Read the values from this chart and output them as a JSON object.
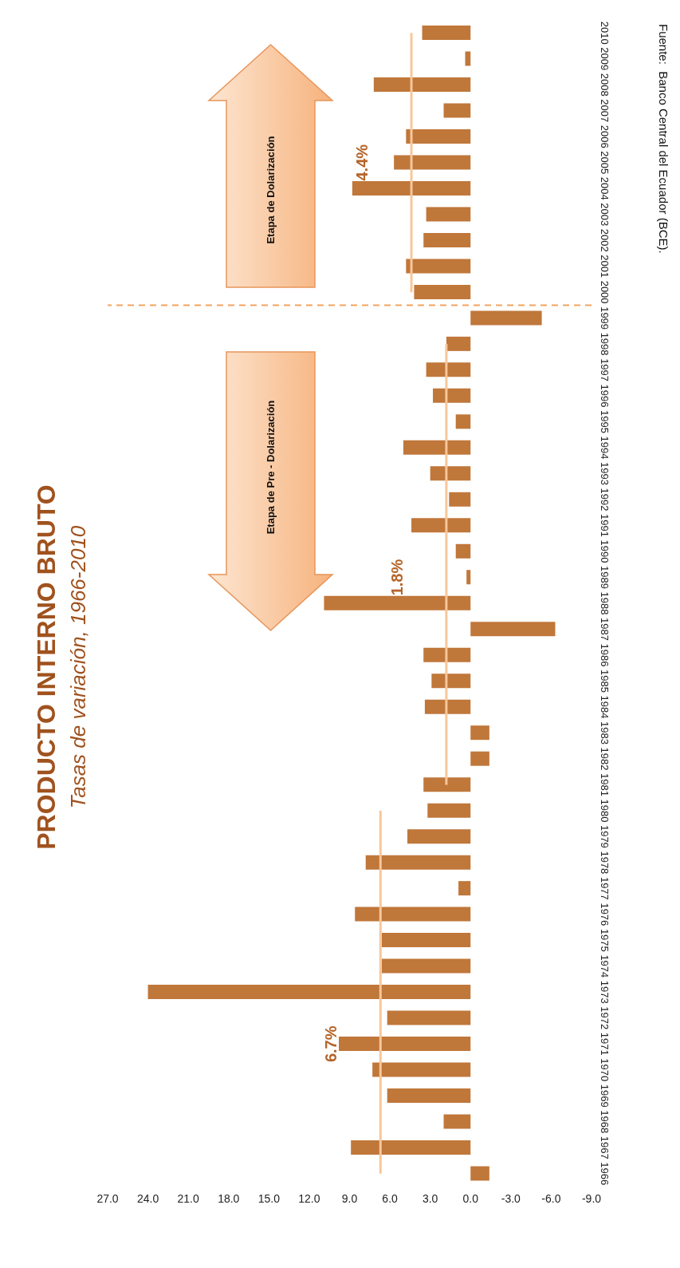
{
  "chart_data": {
    "type": "bar",
    "orientation": "horizontal",
    "title": "PRODUCTO INTERNO BRUTO",
    "subtitle": "Tasas de variación, 1966-2010",
    "categories": [
      "2010",
      "2009",
      "2008",
      "2007",
      "2006",
      "2005",
      "2004",
      "2003",
      "2002",
      "2001",
      "2000",
      "1999",
      "1998",
      "1997",
      "1996",
      "1995",
      "1994",
      "1993",
      "1992",
      "1991",
      "1990",
      "1989",
      "1988",
      "1987",
      "1986",
      "1985",
      "1984",
      "1983",
      "1982",
      "1981",
      "1980",
      "1979",
      "1978",
      "1977",
      "1976",
      "1975",
      "1974",
      "1973",
      "1972",
      "1971",
      "1970",
      "1969",
      "1968",
      "1967",
      "1966"
    ],
    "series": [
      {
        "color": "#c0773a",
        "values": [
          3.6,
          0.4,
          7.2,
          2.0,
          4.8,
          5.7,
          8.8,
          3.3,
          3.5,
          4.8,
          4.2,
          -5.3,
          1.8,
          3.3,
          2.8,
          1.1,
          5.0,
          3.0,
          1.6,
          4.4,
          1.1,
          0.3,
          10.9,
          -6.3,
          3.5,
          2.9,
          3.4,
          -1.4,
          -1.4,
          3.5,
          3.2,
          4.7,
          7.8,
          0.9,
          8.6,
          6.6,
          6.6,
          24.0,
          6.2,
          9.8,
          7.3,
          6.2,
          2.0,
          8.9,
          -1.4
        ]
      },
      {
        "type": "line",
        "color": "#f8c79a",
        "values": [
          4.4,
          4.4,
          4.4,
          4.4,
          4.4,
          4.4,
          4.4,
          4.4,
          4.4,
          4.4,
          4.4,
          null,
          null,
          null,
          null,
          null,
          null,
          null,
          null,
          null,
          null,
          null,
          null,
          null,
          null,
          null,
          null,
          null,
          null,
          null,
          null,
          null,
          null,
          null,
          null,
          null,
          null,
          null,
          null,
          null,
          null,
          null,
          null,
          null,
          null
        ]
      },
      {
        "type": "line",
        "color": "#f8c79a",
        "values": [
          null,
          null,
          null,
          null,
          null,
          null,
          null,
          null,
          null,
          null,
          null,
          null,
          1.8,
          1.8,
          1.8,
          1.8,
          1.8,
          1.8,
          1.8,
          1.8,
          1.8,
          1.8,
          1.8,
          1.8,
          1.8,
          1.8,
          1.8,
          1.8,
          1.8,
          1.8,
          null,
          null,
          null,
          null,
          null,
          null,
          null,
          null,
          null,
          null,
          null,
          null,
          null,
          null,
          null
        ]
      },
      {
        "type": "line",
        "color": "#f8c79a",
        "values": [
          null,
          null,
          null,
          null,
          null,
          null,
          null,
          null,
          null,
          null,
          null,
          null,
          null,
          null,
          null,
          null,
          null,
          null,
          null,
          null,
          null,
          null,
          null,
          null,
          null,
          null,
          null,
          null,
          null,
          null,
          6.7,
          6.7,
          6.7,
          6.7,
          6.7,
          6.7,
          6.7,
          6.7,
          6.7,
          6.7,
          6.7,
          6.7,
          6.7,
          6.7,
          6.7
        ]
      }
    ],
    "xlim": [
      27,
      -9
    ],
    "xticks": [
      {
        "value": 27,
        "label": "27.0"
      },
      {
        "value": 24,
        "label": "24.0"
      },
      {
        "value": 21,
        "label": "21.0"
      },
      {
        "value": 18,
        "label": "18.0"
      },
      {
        "value": 15,
        "label": "15.0"
      },
      {
        "value": 12,
        "label": "12.0"
      },
      {
        "value": 9,
        "label": "9.0"
      },
      {
        "value": 6,
        "label": "6.0"
      },
      {
        "value": 3,
        "label": "3.0"
      },
      {
        "value": 0,
        "label": "0.0"
      },
      {
        "value": -3,
        "label": "-3.0"
      },
      {
        "value": -6,
        "label": "-6.0"
      },
      {
        "value": -9,
        "label": "-9.0"
      }
    ],
    "ref_lines": [
      {
        "axis": "y",
        "value": "1999",
        "color": "#f4a460",
        "line_style": "dashed"
      }
    ],
    "annotations": [
      {
        "text": "4.4%",
        "x": 4.4,
        "y": "2005"
      },
      {
        "text": "1.8%",
        "x": 1.8,
        "y": "1989"
      },
      {
        "text": "6.7%",
        "x": 6.7,
        "y": "1971"
      },
      "Etapa de Dolarización",
      "Etapa de Pre - Dolarización",
      "Fuente:  Banco Central del Ecuador (BCE)."
    ],
    "legend": false,
    "grid": false
  }
}
